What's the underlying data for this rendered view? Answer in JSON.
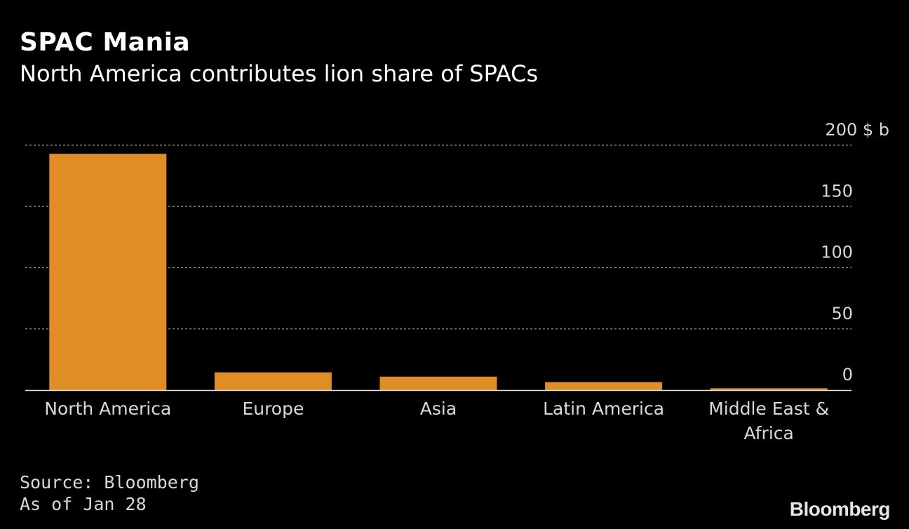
{
  "header": {
    "title": "SPAC Mania",
    "subtitle": "North America contributes lion share of SPACs"
  },
  "footer": {
    "source": "Source: Bloomberg",
    "date_note": "As of Jan 28",
    "brand": "Bloomberg"
  },
  "colors": {
    "background": "#000000",
    "bar": "#e08d26",
    "grid": "#8c8c8c",
    "text": "#ffffff",
    "tick_text": "#d8d8d8"
  },
  "chart_data": {
    "type": "bar",
    "title": "SPAC Mania",
    "subtitle": "North America contributes lion share of SPACs",
    "categories": [
      "North America",
      "Europe",
      "Asia",
      "Latin America",
      "Middle East & Africa"
    ],
    "values": [
      193,
      14.5,
      11,
      6.5,
      1.5
    ],
    "unit": "$ b",
    "ylim": [
      0,
      200
    ],
    "yticks": [
      0,
      50,
      100,
      150,
      200
    ],
    "ytick_labels": [
      "0",
      "50",
      "100",
      "150",
      "200 $ b"
    ],
    "y_axis_side": "right",
    "grid": "horizontal-dashed",
    "legend": "none"
  }
}
